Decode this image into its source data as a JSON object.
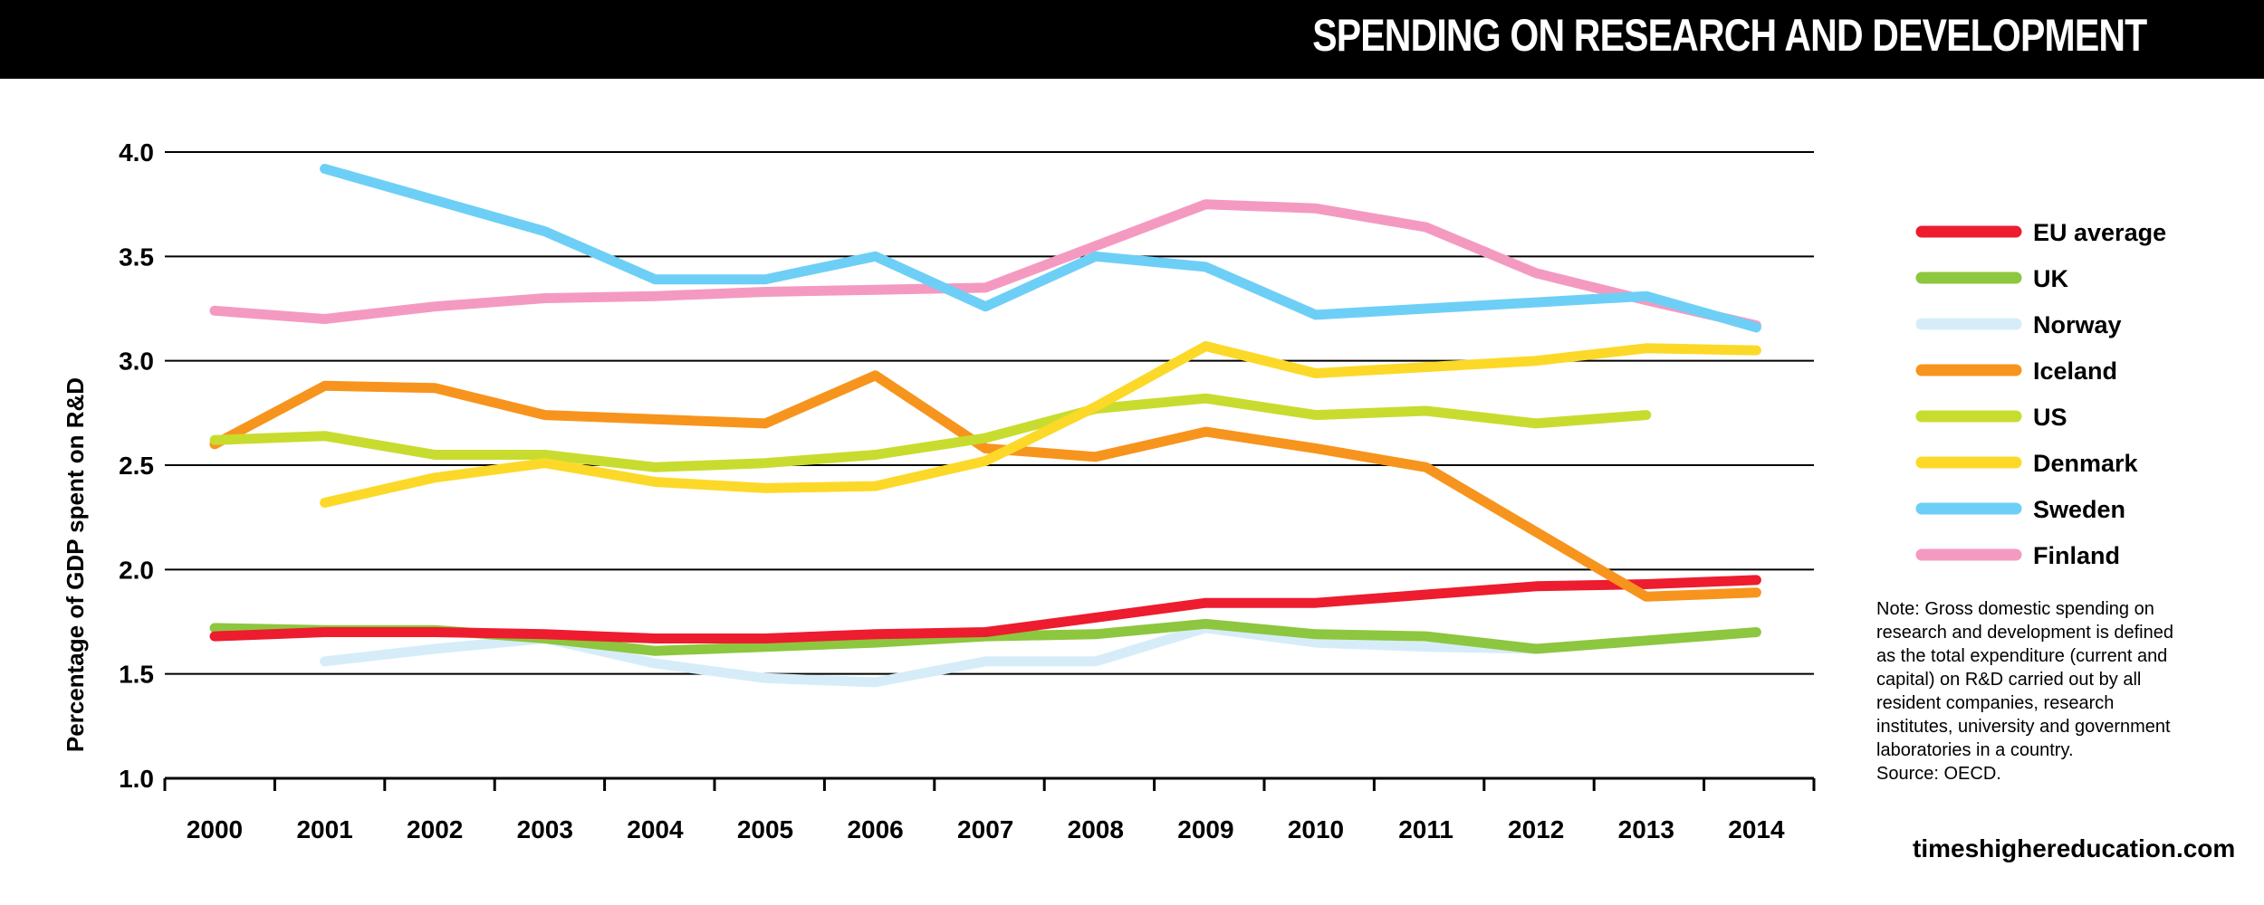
{
  "header": {
    "title": "SPENDING ON RESEARCH AND DEVELOPMENT"
  },
  "note": {
    "lines": [
      "Note: Gross domestic spending on",
      "research and development is defined",
      "as the total expenditure (current and",
      "capital) on R&D carried out by all",
      "resident companies, research",
      "institutes, university and government",
      "laboratories in a country.",
      "Source: OECD."
    ]
  },
  "footer": {
    "site": "timeshighereducation.com"
  },
  "chart_data": {
    "type": "line",
    "title": "SPENDING ON RESEARCH AND DEVELOPMENT",
    "xlabel": "",
    "ylabel": "Percentage of GDP spent on R&D",
    "x": [
      2000,
      2001,
      2002,
      2003,
      2004,
      2005,
      2006,
      2007,
      2008,
      2009,
      2010,
      2011,
      2012,
      2013,
      2014
    ],
    "x_tick_labels": [
      "2000",
      "2001",
      "2002",
      "2003",
      "2004",
      "2005",
      "2006",
      "2007",
      "2008",
      "2009",
      "2010",
      "2011",
      "2012",
      "2013",
      "2014"
    ],
    "ylim": [
      1.0,
      4.0
    ],
    "y_ticks": [
      "1.0",
      "1.5",
      "2.0",
      "2.5",
      "3.0",
      "3.5",
      "4.0"
    ],
    "grid": "horizontal",
    "legend_position": "right",
    "series": [
      {
        "name": "Norway",
        "color": "#d6edf9",
        "values": [
          null,
          1.56,
          1.62,
          1.67,
          1.55,
          1.48,
          1.46,
          1.56,
          1.56,
          1.72,
          1.65,
          1.63,
          1.62,
          null,
          null
        ]
      },
      {
        "name": "UK",
        "color": "#8dc63f",
        "values": [
          1.72,
          1.71,
          1.71,
          1.67,
          1.61,
          1.63,
          1.65,
          1.68,
          1.69,
          1.74,
          1.69,
          1.68,
          1.62,
          1.66,
          1.7
        ]
      },
      {
        "name": "EU average",
        "color": "#ed1c2e",
        "values": [
          1.68,
          1.7,
          1.7,
          1.69,
          1.67,
          1.67,
          1.69,
          1.7,
          1.77,
          1.84,
          1.84,
          1.88,
          1.92,
          1.93,
          1.95
        ]
      },
      {
        "name": "Iceland",
        "color": "#f7941d",
        "values": [
          2.6,
          2.88,
          2.87,
          2.74,
          2.72,
          2.7,
          2.93,
          2.58,
          2.54,
          2.66,
          2.58,
          2.49,
          2.18,
          1.87,
          1.89
        ]
      },
      {
        "name": "US",
        "color": "#c8dc2f",
        "values": [
          2.62,
          2.64,
          2.55,
          2.55,
          2.49,
          2.51,
          2.55,
          2.63,
          2.77,
          2.82,
          2.74,
          2.76,
          2.7,
          2.74,
          null
        ]
      },
      {
        "name": "Denmark",
        "color": "#fcd928",
        "values": [
          null,
          2.32,
          2.44,
          2.51,
          2.42,
          2.39,
          2.4,
          2.52,
          2.78,
          3.07,
          2.94,
          2.97,
          3.0,
          3.06,
          3.05
        ]
      },
      {
        "name": "Finland",
        "color": "#f49ac1",
        "values": [
          3.24,
          3.2,
          3.26,
          3.3,
          3.31,
          3.33,
          3.34,
          3.35,
          3.55,
          3.75,
          3.73,
          3.64,
          3.42,
          3.29,
          3.17
        ]
      },
      {
        "name": "Sweden",
        "color": "#6dcff6",
        "values": [
          null,
          3.92,
          3.77,
          3.62,
          3.39,
          3.39,
          3.5,
          3.26,
          3.5,
          3.45,
          3.22,
          3.25,
          3.28,
          3.31,
          3.16
        ]
      }
    ],
    "legend": [
      {
        "name": "EU average",
        "color": "#ed1c2e"
      },
      {
        "name": "UK",
        "color": "#8dc63f"
      },
      {
        "name": "Norway",
        "color": "#d6edf9"
      },
      {
        "name": "Iceland",
        "color": "#f7941d"
      },
      {
        "name": "US",
        "color": "#c8dc2f"
      },
      {
        "name": "Denmark",
        "color": "#fcd928"
      },
      {
        "name": "Sweden",
        "color": "#6dcff6"
      },
      {
        "name": "Finland",
        "color": "#f49ac1"
      }
    ]
  }
}
